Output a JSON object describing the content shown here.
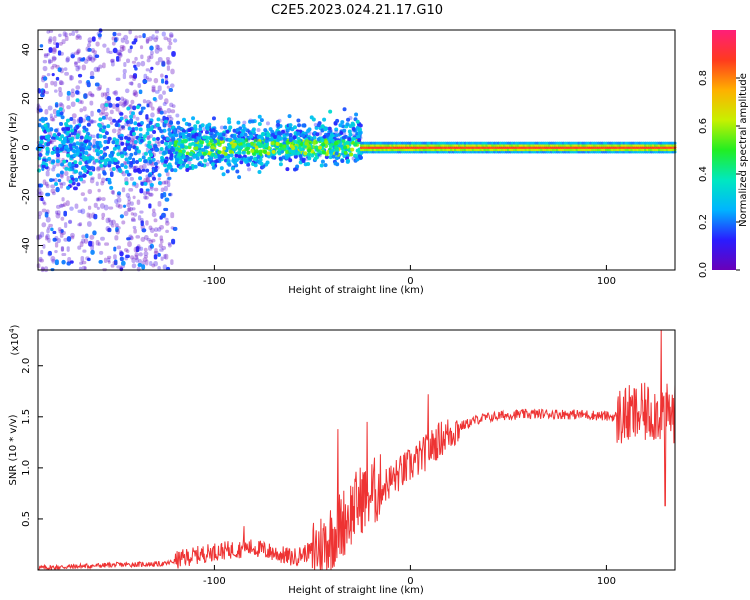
{
  "title": "C2E5.2023.024.21.17.G10",
  "colors": {
    "line": "#ee3333",
    "axis": "#000000",
    "colorbar": [
      "#6a00b8",
      "#2a1cff",
      "#00b4ff",
      "#00e8c0",
      "#22ee22",
      "#c8f000",
      "#ffb000",
      "#ff3a1e",
      "#ff1e78"
    ]
  },
  "chart_data": [
    {
      "type": "heatmap",
      "title": "C2E5.2023.024.21.17.G10",
      "xlabel": "Height of straight line (km)",
      "ylabel": "Frequency (Hz)",
      "xlim": [
        -190,
        135
      ],
      "ylim": [
        -50,
        48
      ],
      "xticks": [
        -100,
        0,
        100
      ],
      "xtick_labels": [
        "-100",
        "0",
        "100"
      ],
      "yticks": [
        -40,
        -20,
        0,
        20,
        40
      ],
      "ytick_labels": [
        "-40",
        "-20",
        "0",
        "20",
        "40"
      ],
      "colorbar": {
        "label": "Normalized spectral amplitude",
        "range": [
          0,
          1
        ],
        "ticks": [
          0,
          0.2,
          0.4,
          0.6,
          0.8
        ],
        "tick_labels": [
          "0.0",
          "0.2",
          "0.4",
          "0.6",
          "0.8"
        ]
      },
      "description_data": {
        "scatter_region_x": [
          -190,
          -120
        ],
        "broadband_region_x": [
          -120,
          -25
        ],
        "drift_start": {
          "x": -120,
          "y": -5
        },
        "drift_end": {
          "x": -25,
          "y": 8
        },
        "narrowband_region_x": [
          -25,
          135
        ],
        "narrowband_freq": 0,
        "narrowband_amplitude": 0.9
      }
    },
    {
      "type": "line",
      "xlabel": "Height of straight line (km)",
      "ylabel": "SNR (10 * v/v)",
      "y_multiplier": "(x10",
      "y_multiplier_exp": "4",
      "xlim": [
        -190,
        135
      ],
      "ylim": [
        0,
        23500
      ],
      "xticks": [
        -100,
        0,
        100
      ],
      "xtick_labels": [
        "-100",
        "0",
        "100"
      ],
      "yticks": [
        5000,
        10000,
        15000,
        20000
      ],
      "ytick_labels": [
        "0.5",
        "1.0",
        "1.5",
        "2.0"
      ],
      "trend": {
        "x": [
          -190,
          -150,
          -125,
          -115,
          -100,
          -80,
          -60,
          -45,
          -35,
          -25,
          -15,
          -5,
          5,
          15,
          25,
          35,
          50,
          70,
          90,
          105,
          115,
          125,
          135
        ],
        "y": [
          200,
          500,
          600,
          1200,
          1800,
          2200,
          1200,
          2300,
          4500,
          7000,
          8000,
          9500,
          11000,
          12800,
          14000,
          14800,
          15200,
          15300,
          15200,
          15000,
          15200,
          15500,
          15300
        ]
      },
      "spikes": [
        {
          "x": -37,
          "y": 13800
        },
        {
          "x": -22,
          "y": 14500
        },
        {
          "x": 9,
          "y": 17200
        },
        {
          "x": -85,
          "y": 4300
        },
        {
          "x": 128,
          "y": 23800
        },
        {
          "x": 130,
          "y": 6300
        }
      ]
    }
  ]
}
